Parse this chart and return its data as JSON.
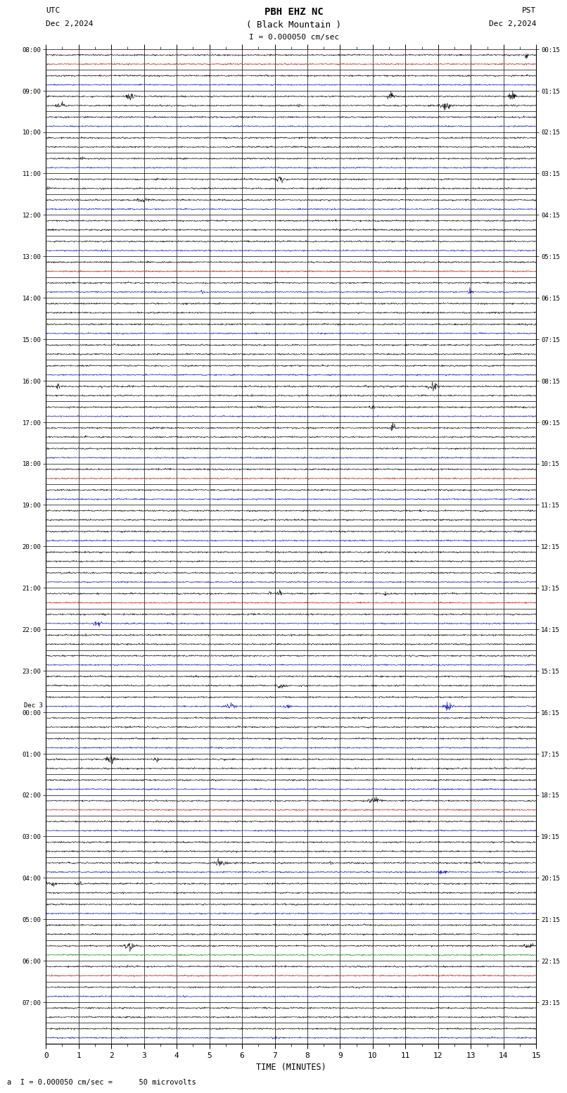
{
  "title_line1": "PBH EHZ NC",
  "title_line2": "( Black Mountain )",
  "scale_text": "I = 0.000050 cm/sec",
  "left_label_line1": "UTC",
  "left_label_line2": "Dec 2,2024",
  "right_label_line1": "PST",
  "right_label_line2": "Dec 2,2024",
  "xlabel": "TIME (MINUTES)",
  "footer_text": "a  I = 0.000050 cm/sec =      50 microvolts",
  "utc_hour_labels": [
    "08:00",
    "09:00",
    "10:00",
    "11:00",
    "12:00",
    "13:00",
    "14:00",
    "15:00",
    "16:00",
    "17:00",
    "18:00",
    "19:00",
    "20:00",
    "21:00",
    "22:00",
    "23:00",
    "00:00",
    "01:00",
    "02:00",
    "03:00",
    "04:00",
    "05:00",
    "06:00",
    "07:00"
  ],
  "pst_hour_labels": [
    "00:15",
    "01:15",
    "02:15",
    "03:15",
    "04:15",
    "05:15",
    "06:15",
    "07:15",
    "08:15",
    "09:15",
    "10:15",
    "11:15",
    "12:15",
    "13:15",
    "14:15",
    "15:15",
    "16:15",
    "17:15",
    "18:15",
    "19:15",
    "20:15",
    "21:15",
    "22:15",
    "23:15"
  ],
  "num_rows": 48,
  "rows_per_hour": 2,
  "bg_color": "#ffffff",
  "trace_color_black": "#000000",
  "trace_color_red": "#cc0000",
  "trace_color_blue": "#0000cc",
  "trace_color_green": "#008800",
  "grid_color": "#000000",
  "font_family": "monospace",
  "x_ticks": [
    0,
    1,
    2,
    3,
    4,
    5,
    6,
    7,
    8,
    9,
    10,
    11,
    12,
    13,
    14,
    15
  ],
  "red_rows": [
    0,
    10,
    20,
    26,
    36,
    44
  ],
  "blue_rows": [
    1,
    3,
    5,
    7,
    9,
    11,
    13,
    15,
    17,
    19,
    21,
    23,
    25,
    27,
    29,
    31,
    33,
    35,
    37,
    39,
    41,
    43,
    45,
    47
  ],
  "green_rows": [
    43
  ]
}
